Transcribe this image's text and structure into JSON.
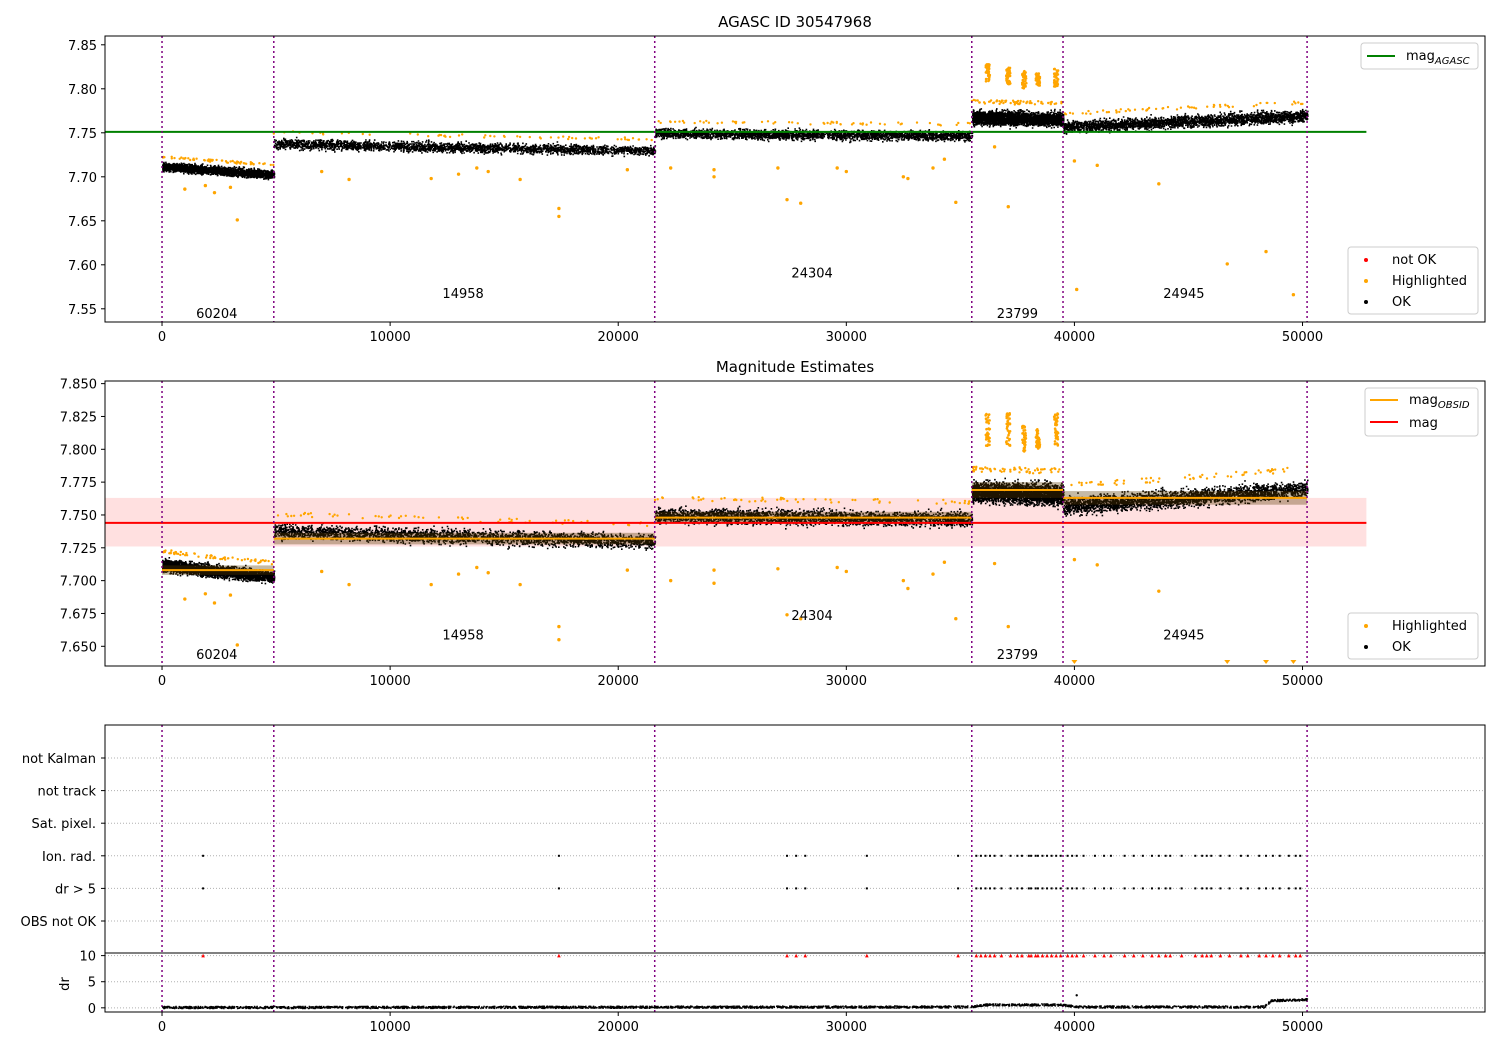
{
  "chart_data": [
    {
      "type": "scatter",
      "title": "AGASC ID 30547968",
      "xlim": [
        -2500,
        58000
      ],
      "ylim": [
        7.535,
        7.86
      ],
      "x_ticks": [
        0,
        10000,
        20000,
        30000,
        40000,
        50000
      ],
      "y_ticks": [
        7.55,
        7.6,
        7.65,
        7.7,
        7.75,
        7.8,
        7.85
      ],
      "y_tick_labels": [
        "7.55",
        "7.60",
        "7.65",
        "7.70",
        "7.75",
        "7.80",
        "7.85"
      ],
      "obsid_boundaries": [
        0,
        4900,
        21600,
        35500,
        39500,
        50200
      ],
      "obsids": [
        {
          "label": "60204",
          "x": 2400,
          "y": 7.545,
          "x0": 0,
          "x1": 4900,
          "mag_start": 7.712,
          "mag_end": 7.703
        },
        {
          "label": "14958",
          "x": 13200,
          "y": 7.568,
          "x0": 4900,
          "x1": 21600,
          "mag_start": 7.738,
          "mag_end": 7.73
        },
        {
          "label": "24304",
          "x": 28500,
          "y": 7.591,
          "x0": 21600,
          "x1": 35500,
          "mag_start": 7.75,
          "mag_end": 7.747
        },
        {
          "label": "23799",
          "x": 37500,
          "y": 7.545,
          "x0": 35500,
          "x1": 39500,
          "mag_start": 7.768,
          "mag_end": 7.766
        },
        {
          "label": "24945",
          "x": 44800,
          "y": 7.568,
          "x0": 39500,
          "x1": 50200,
          "mag_start": 7.757,
          "mag_end": 7.77
        }
      ],
      "mag_agasc": {
        "value": 7.751,
        "x_range": [
          0,
          52800
        ],
        "color": "#008000"
      },
      "highlighted_outliers": [
        [
          1000,
          7.686
        ],
        [
          1900,
          7.69
        ],
        [
          2300,
          7.682
        ],
        [
          3000,
          7.688
        ],
        [
          3300,
          7.651
        ],
        [
          7000,
          7.706
        ],
        [
          8200,
          7.697
        ],
        [
          11800,
          7.698
        ],
        [
          13000,
          7.703
        ],
        [
          13800,
          7.71
        ],
        [
          14300,
          7.706
        ],
        [
          15700,
          7.697
        ],
        [
          17400,
          7.664
        ],
        [
          17400,
          7.655
        ],
        [
          20400,
          7.708
        ],
        [
          22300,
          7.71
        ],
        [
          24200,
          7.7
        ],
        [
          24200,
          7.708
        ],
        [
          27000,
          7.71
        ],
        [
          27400,
          7.674
        ],
        [
          28000,
          7.67
        ],
        [
          29600,
          7.71
        ],
        [
          30000,
          7.706
        ],
        [
          32500,
          7.7
        ],
        [
          32700,
          7.698
        ],
        [
          33800,
          7.71
        ],
        [
          34300,
          7.72
        ],
        [
          34800,
          7.671
        ],
        [
          36500,
          7.734
        ],
        [
          37100,
          7.666
        ],
        [
          40000,
          7.718
        ],
        [
          40100,
          7.572
        ],
        [
          41000,
          7.713
        ],
        [
          43700,
          7.692
        ],
        [
          46700,
          7.601
        ],
        [
          48400,
          7.615
        ],
        [
          49600,
          7.566
        ]
      ],
      "legend": {
        "position": "top-right",
        "entries": [
          "mag_AGASC"
        ]
      },
      "legend_points": {
        "position": "bottom-right",
        "entries": [
          {
            "label": "not OK",
            "color": "#ff0000"
          },
          {
            "label": "Highlighted",
            "color": "#ffa500"
          },
          {
            "label": "OK",
            "color": "#000000"
          }
        ]
      }
    },
    {
      "type": "scatter",
      "title": "Magnitude Estimates",
      "xlim": [
        -2500,
        58000
      ],
      "ylim": [
        7.635,
        7.852
      ],
      "x_ticks": [
        0,
        10000,
        20000,
        30000,
        40000,
        50000
      ],
      "y_ticks": [
        7.65,
        7.675,
        7.7,
        7.725,
        7.75,
        7.775,
        7.8,
        7.825,
        7.85
      ],
      "y_tick_labels": [
        "7.650",
        "7.675",
        "7.700",
        "7.725",
        "7.750",
        "7.775",
        "7.800",
        "7.825",
        "7.850"
      ],
      "obsid_boundaries": [
        0,
        4900,
        21600,
        35500,
        39500,
        50200
      ],
      "obsids": [
        {
          "label": "60204",
          "x": 2400,
          "y": 7.644,
          "mag_obsid": 7.708
        },
        {
          "label": "14958",
          "x": 13200,
          "y": 7.659,
          "mag_obsid": 7.732
        },
        {
          "label": "24304",
          "x": 28500,
          "y": 7.674,
          "mag_obsid": 7.748
        },
        {
          "label": "23799",
          "x": 37500,
          "y": 7.644,
          "mag_obsid": 7.769
        },
        {
          "label": "24945",
          "x": 44800,
          "y": 7.659,
          "mag_obsid": 7.763
        }
      ],
      "mag": {
        "value": 7.744,
        "band": [
          7.726,
          7.763
        ],
        "x_range": [
          0,
          52800
        ],
        "color": "#ff0000"
      },
      "below_range_markers": [
        40000,
        46700,
        48400,
        49600
      ],
      "highlighted_outliers": [
        [
          1000,
          7.686
        ],
        [
          1900,
          7.69
        ],
        [
          2300,
          7.683
        ],
        [
          3000,
          7.689
        ],
        [
          3300,
          7.651
        ],
        [
          7000,
          7.707
        ],
        [
          8200,
          7.697
        ],
        [
          11800,
          7.697
        ],
        [
          13000,
          7.705
        ],
        [
          13800,
          7.71
        ],
        [
          14300,
          7.706
        ],
        [
          15700,
          7.697
        ],
        [
          17400,
          7.665
        ],
        [
          17400,
          7.655
        ],
        [
          20400,
          7.708
        ],
        [
          22300,
          7.7
        ],
        [
          24200,
          7.698
        ],
        [
          24200,
          7.708
        ],
        [
          27000,
          7.709
        ],
        [
          27400,
          7.674
        ],
        [
          28000,
          7.671
        ],
        [
          29600,
          7.71
        ],
        [
          30000,
          7.707
        ],
        [
          32500,
          7.7
        ],
        [
          32700,
          7.694
        ],
        [
          33800,
          7.705
        ],
        [
          34300,
          7.714
        ],
        [
          34800,
          7.671
        ],
        [
          36500,
          7.713
        ],
        [
          37100,
          7.665
        ],
        [
          40000,
          7.716
        ],
        [
          41000,
          7.712
        ],
        [
          43700,
          7.692
        ]
      ],
      "legend": {
        "position": "top-right",
        "entries": [
          "mag_OBSID",
          "mag"
        ]
      },
      "legend_points": {
        "position": "bottom-right",
        "entries": [
          {
            "label": "Highlighted",
            "color": "#ffa500"
          },
          {
            "label": "OK",
            "color": "#000000"
          }
        ]
      }
    },
    {
      "type": "scatter",
      "xlim": [
        -2500,
        58000
      ],
      "x_ticks": [
        0,
        10000,
        20000,
        30000,
        40000,
        50000
      ],
      "flag_rows": [
        "not Kalman",
        "not track",
        "Sat. pixel.",
        "Ion. rad.",
        "dr > 5",
        "OBS not OK"
      ],
      "flag_times": [
        1800,
        17400,
        27400,
        27800,
        28200,
        30900,
        34900,
        35700,
        35900,
        36100,
        36300,
        36500,
        36800,
        37200,
        37500,
        37700,
        38000,
        38100,
        38300,
        38400,
        38600,
        38800,
        39000,
        39200,
        39400,
        39700,
        39900,
        40100,
        40400,
        40900,
        41300,
        41600,
        42200,
        42600,
        43000,
        43400,
        43700,
        44000,
        44200,
        44700,
        45300,
        45600,
        45800,
        46000,
        46400,
        46800,
        47300,
        47600,
        48100,
        48400,
        48700,
        49000,
        49400,
        49700,
        49900
      ],
      "flag_rows_set": [
        "Ion. rad.",
        "dr > 5"
      ],
      "obsid_boundaries": [
        0,
        4900,
        21600,
        35500,
        39500,
        50200
      ]
    },
    {
      "type": "scatter",
      "ylabel": "dr",
      "xlim": [
        -2500,
        58000
      ],
      "ylim": [
        -0.8,
        10.5
      ],
      "y_ticks": [
        0,
        5,
        10
      ],
      "x_ticks": [
        0,
        10000,
        20000,
        30000,
        40000,
        50000
      ],
      "dr_clip": 10,
      "dr_typical": [
        [
          0,
          0.2
        ],
        [
          35500,
          0.3
        ],
        [
          36000,
          0.7
        ],
        [
          39500,
          0.7
        ],
        [
          40000,
          0.3
        ],
        [
          48300,
          0.3
        ],
        [
          48600,
          1.5
        ],
        [
          50200,
          1.7
        ]
      ],
      "dr_outliers": [
        [
          40100,
          2.4
        ]
      ],
      "obsid_boundaries": [
        0,
        4900,
        21600,
        35500,
        39500,
        50200
      ]
    }
  ],
  "axis_labels": {
    "x": [
      "0",
      "10000",
      "20000",
      "30000",
      "40000",
      "50000"
    ],
    "flags": [
      "not Kalman",
      "not track",
      "Sat. pixel.",
      "Ion. rad.",
      "dr > 5",
      "OBS not OK"
    ],
    "dr": [
      "10",
      "5",
      "0"
    ]
  },
  "legends": {
    "top_line": {
      "main": "mag",
      "sub": "AGASC"
    },
    "mid_line1": {
      "main": "mag",
      "sub": "OBSID"
    },
    "mid_line2": "mag",
    "top_points": [
      "not OK",
      "Highlighted",
      "OK"
    ],
    "mid_points": [
      "Highlighted",
      "OK"
    ]
  },
  "colors": {
    "ok": "#000000",
    "highlighted": "#ffa500",
    "not_ok": "#ff0000",
    "boundary": "#800080",
    "agasc": "#008000",
    "obsid_mag": "#ffa500",
    "mag": "#ff0000",
    "band": "#ffe0e0",
    "grid": "#b0b0b0"
  }
}
